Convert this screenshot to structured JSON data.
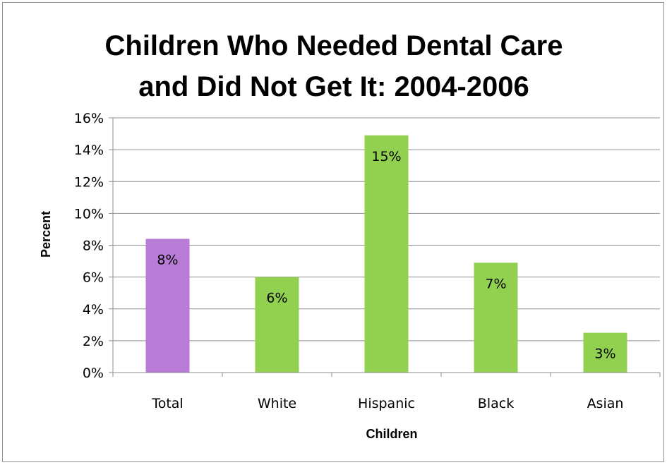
{
  "chart_data": {
    "type": "bar",
    "title_lines": [
      "Children Who Needed Dental Care",
      "and Did Not Get It:  2004-2006"
    ],
    "xlabel": "Children",
    "ylabel": "Percent",
    "categories": [
      "Total",
      "White",
      "Hispanic",
      "Black",
      "Asian"
    ],
    "values": [
      8.4,
      6.0,
      14.9,
      6.9,
      2.5
    ],
    "data_labels": [
      "8%",
      "6%",
      "15%",
      "7%",
      "3%"
    ],
    "bar_colors": [
      "#B87BD6",
      "#92D050",
      "#92D050",
      "#92D050",
      "#92D050"
    ],
    "ylim": [
      0,
      16
    ],
    "yticks": [
      0,
      2,
      4,
      6,
      8,
      10,
      12,
      14,
      16
    ],
    "ytick_labels": [
      "0%",
      "2%",
      "4%",
      "6%",
      "8%",
      "10%",
      "12%",
      "14%",
      "16%"
    ],
    "grid": true,
    "legend": "none"
  }
}
